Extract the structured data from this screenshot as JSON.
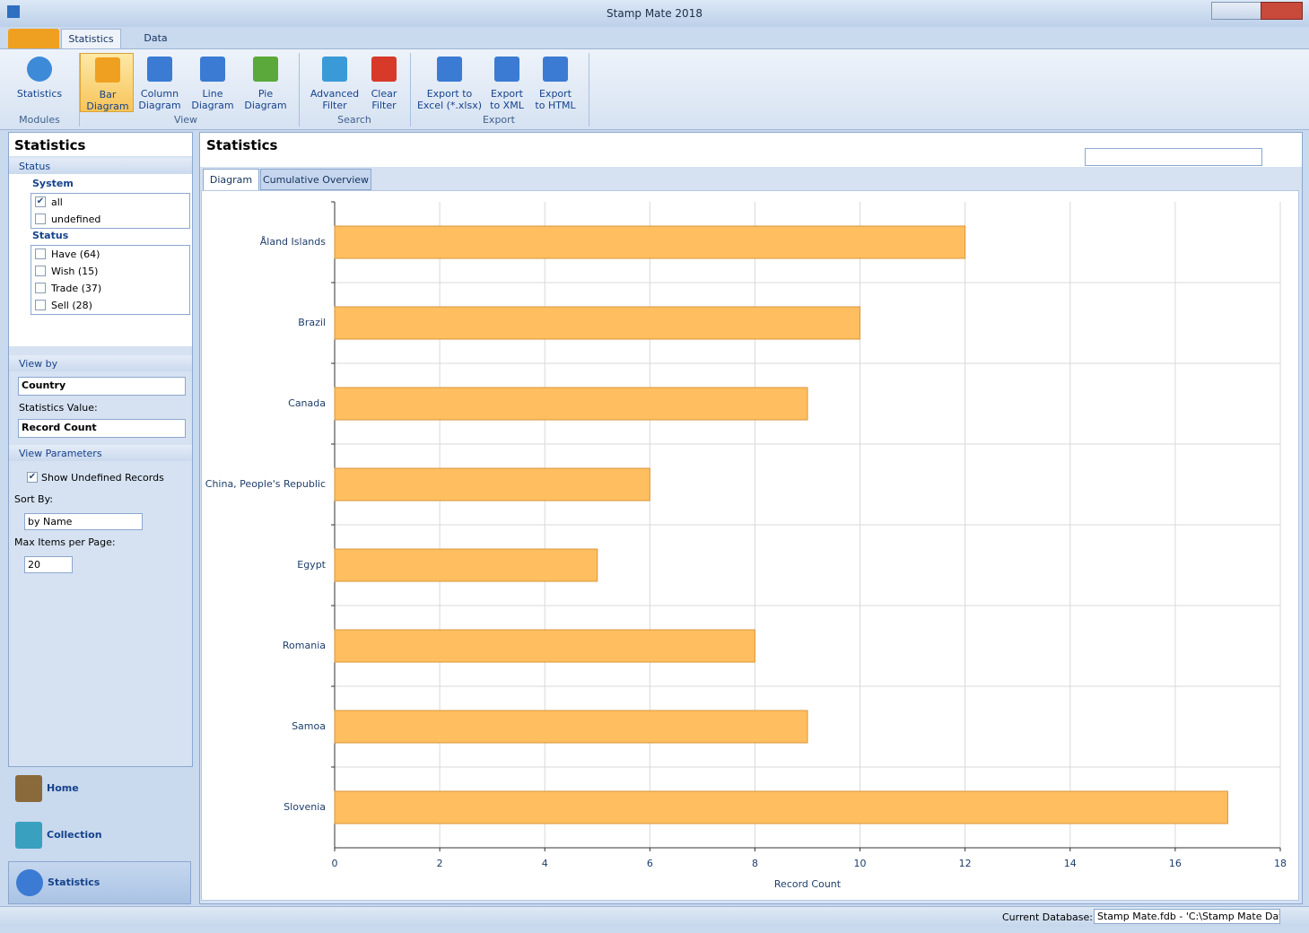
{
  "window": {
    "title": "Stamp Mate 2018"
  },
  "ribbon": {
    "tabs": [
      "Statistics",
      "Data"
    ],
    "groups": [
      {
        "label": "Modules",
        "buttons": [
          {
            "lines": [
              "Statistics"
            ]
          }
        ]
      },
      {
        "label": "View",
        "buttons": [
          {
            "lines": [
              "Bar",
              "Diagram"
            ],
            "selected": true
          },
          {
            "lines": [
              "Column",
              "Diagram"
            ]
          },
          {
            "lines": [
              "Line",
              "Diagram"
            ]
          },
          {
            "lines": [
              "Pie",
              "Diagram"
            ]
          }
        ]
      },
      {
        "label": "Search",
        "buttons": [
          {
            "lines": [
              "Advanced",
              "Filter"
            ]
          },
          {
            "lines": [
              "Clear",
              "Filter"
            ]
          }
        ]
      },
      {
        "label": "Export",
        "buttons": [
          {
            "lines": [
              "Export to",
              "Excel (*.xlsx)"
            ]
          },
          {
            "lines": [
              "Export",
              "to XML"
            ]
          },
          {
            "lines": [
              "Export",
              "to HTML"
            ]
          }
        ]
      }
    ]
  },
  "side_panel": {
    "title": "Statistics",
    "status_header": "Status",
    "groups": [
      {
        "label": "System",
        "items": [
          {
            "label": "all",
            "checked": true
          },
          {
            "label": "undefined",
            "checked": false
          }
        ]
      },
      {
        "label": "Status",
        "items": [
          {
            "label": "Have (64)",
            "checked": false
          },
          {
            "label": "Wish (15)",
            "checked": false
          },
          {
            "label": "Trade (37)",
            "checked": false
          },
          {
            "label": "Sell (28)",
            "checked": false
          }
        ]
      }
    ],
    "view_by": {
      "header": "View by",
      "value": "Country",
      "stat_label": "Statistics Value:",
      "stat_value": "Record Count"
    },
    "view_parameters": {
      "header": "View Parameters",
      "show_undefined": {
        "label": "Show Undefined Records",
        "checked": true
      },
      "sort_label": "Sort By:",
      "sort_value": "by Name",
      "max_label": "Max Items per Page:",
      "max_value": "20"
    },
    "nav": [
      "Home",
      "Collection",
      "Statistics"
    ]
  },
  "main": {
    "title": "Statistics",
    "tabs": [
      "Diagram",
      "Cumulative Overview"
    ]
  },
  "status_bar": {
    "label": "Current Database:",
    "value": "Stamp Mate.fdb - 'C:\\Stamp Mate Datab"
  },
  "chart_data": {
    "type": "hbar",
    "x_label": "Record Count",
    "categories": [
      "Åland Islands",
      "Brazil",
      "Canada",
      "China, People's Republic",
      "Egypt",
      "Romania",
      "Samoa",
      "Slovenia"
    ],
    "values": [
      12,
      10,
      9,
      6,
      5,
      8,
      9,
      17
    ],
    "color": "#ffbf60",
    "xlim": [
      0,
      18
    ],
    "xticks": [
      0,
      2,
      4,
      6,
      8,
      10,
      12,
      14,
      16,
      18
    ],
    "grid": true
  }
}
